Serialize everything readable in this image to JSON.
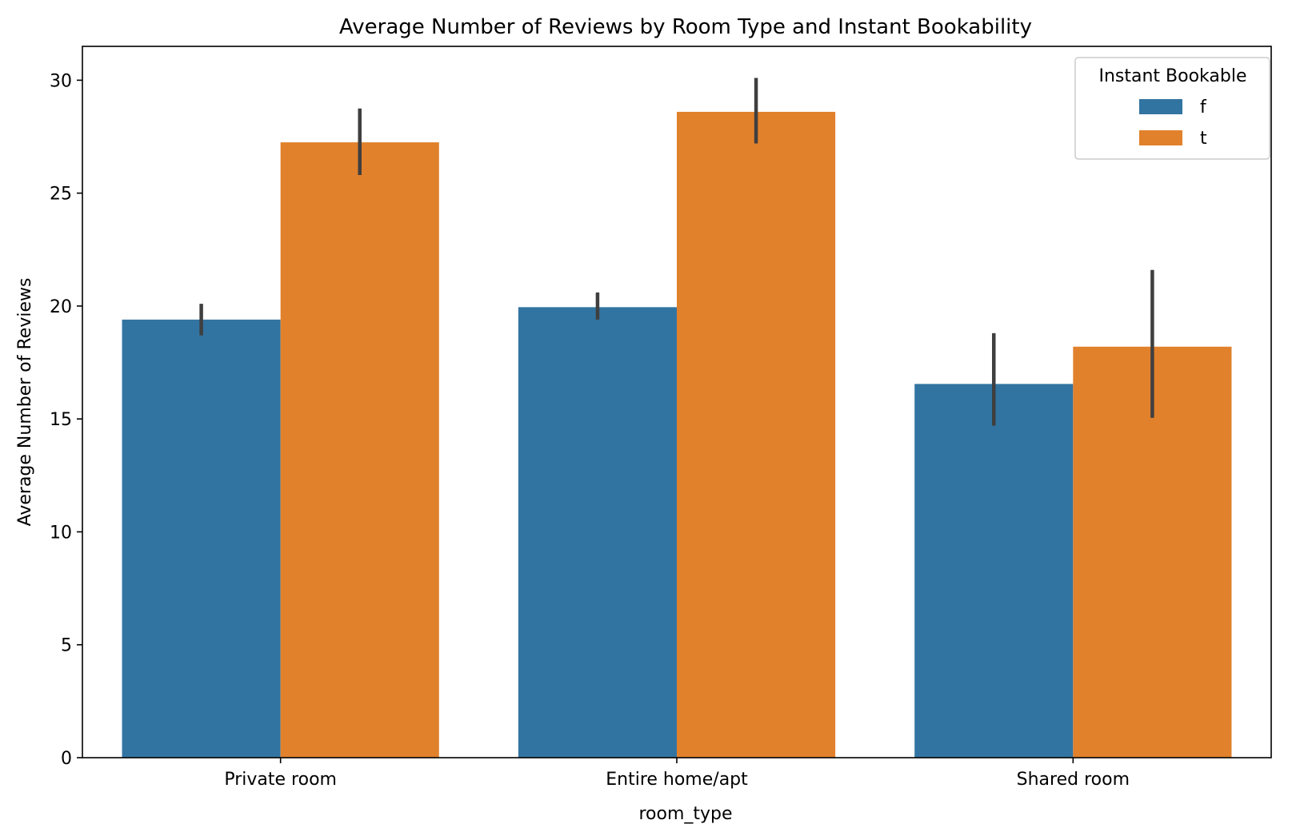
{
  "chart_data": {
    "type": "bar",
    "title": "Average Number of Reviews by Room Type and Instant Bookability",
    "xlabel": "room_type",
    "ylabel": "Average Number of Reviews",
    "categories": [
      "Private room",
      "Entire home/apt",
      "Shared room"
    ],
    "ylim": [
      0,
      31.5
    ],
    "yticks": [
      0,
      5,
      10,
      15,
      20,
      25,
      30
    ],
    "grid": false,
    "legend": {
      "title": "Instant Bookable",
      "placement": "top-right"
    },
    "series": [
      {
        "name": "f",
        "color": "#3274a1",
        "values": [
          19.4,
          19.95,
          16.55
        ],
        "ci_low": [
          18.7,
          19.4,
          14.7
        ],
        "ci_high": [
          20.1,
          20.6,
          18.8
        ]
      },
      {
        "name": "t",
        "color": "#e1812c",
        "values": [
          27.25,
          28.6,
          18.2
        ],
        "ci_low": [
          25.8,
          27.2,
          15.05
        ],
        "ci_high": [
          28.75,
          30.1,
          21.6
        ]
      }
    ],
    "errorbar_color": "#3f3f3f"
  }
}
